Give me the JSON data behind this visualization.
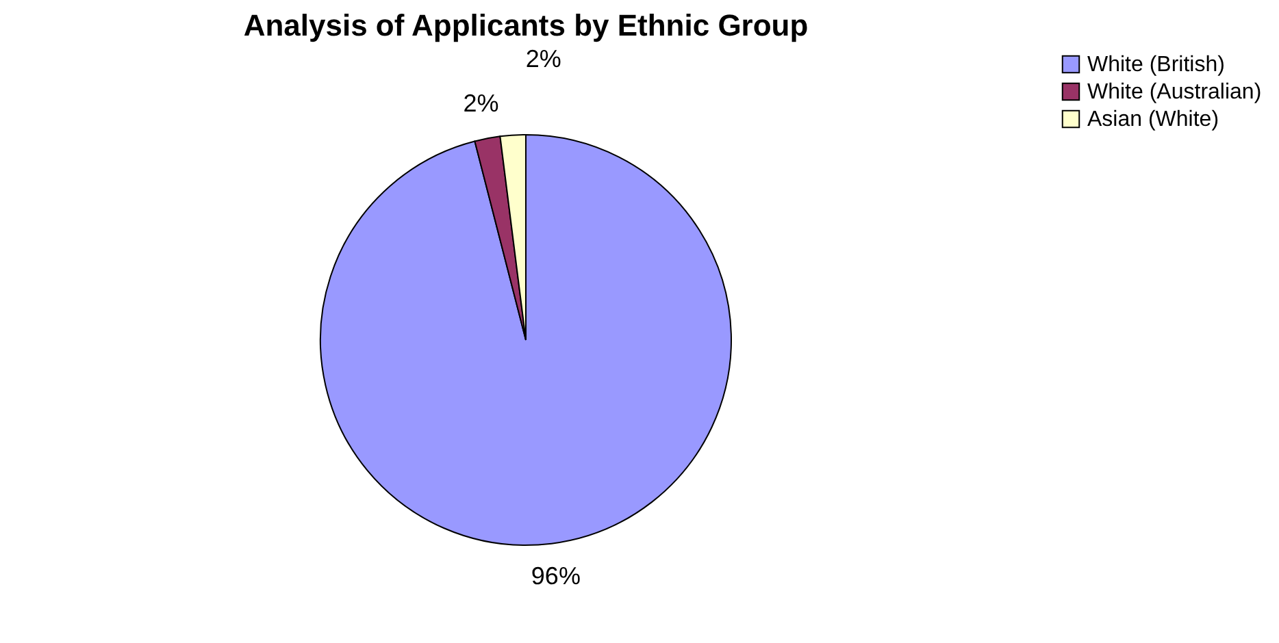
{
  "chart_data": {
    "type": "pie",
    "title": "Analysis of Applicants by Ethnic Group",
    "categories": [
      "White (British)",
      "White (Australian)",
      "Asian (White)"
    ],
    "values": [
      96,
      2,
      2
    ],
    "colors": [
      "#9999ff",
      "#993366",
      "#ffffcc"
    ],
    "value_labels": [
      "96%",
      "2%",
      "2%"
    ],
    "legend": "right"
  }
}
